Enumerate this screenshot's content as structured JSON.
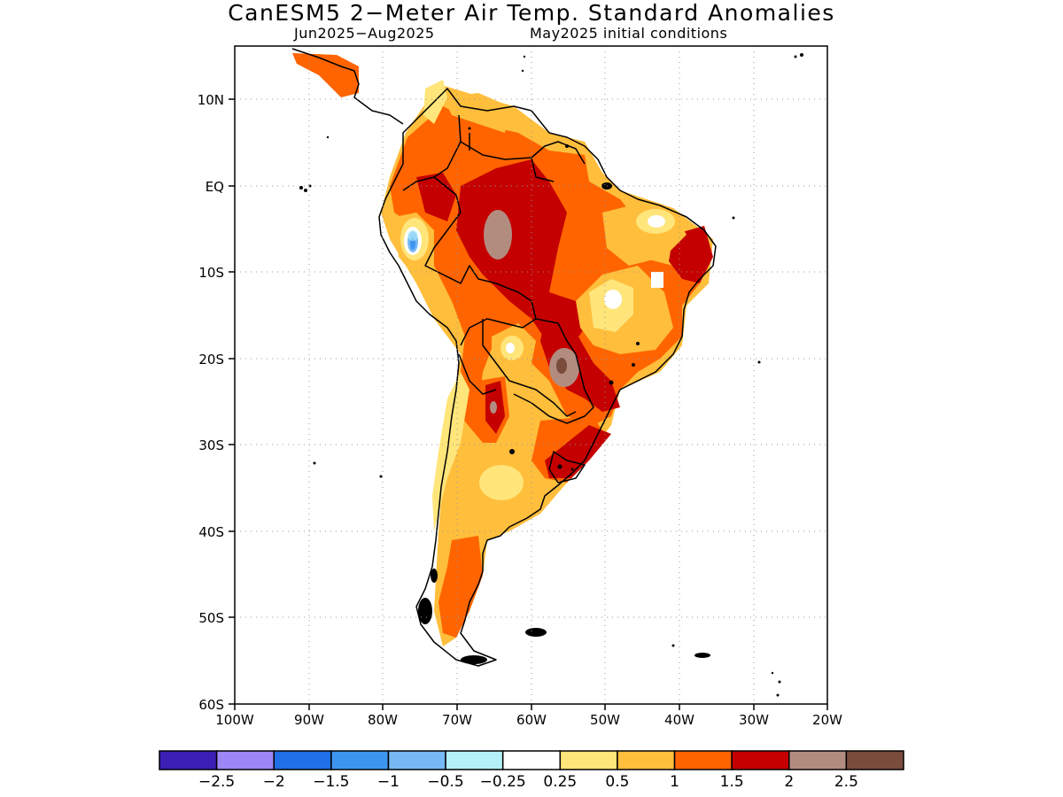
{
  "title": "CanESM5 2−Meter Air Temp. Standard Anomalies",
  "subtitle_period": "Jun2025−Aug2025",
  "subtitle_ic": "May2025 initial conditions",
  "map": {
    "lon_range": [
      -100,
      -20
    ],
    "lat_range": [
      -60,
      15
    ],
    "lat_ticks": [
      "10N",
      "EQ",
      "10S",
      "20S",
      "30S",
      "40S",
      "50S",
      "60S"
    ],
    "lon_ticks": [
      "100W",
      "90W",
      "80W",
      "70W",
      "60W",
      "50W",
      "40W",
      "30W",
      "20W"
    ],
    "grid": "dotted"
  },
  "colorbar": {
    "colors": [
      "#3a1fb5",
      "#9b87f5",
      "#1f6fe6",
      "#3c96f0",
      "#78b8f5",
      "#b3f0f8",
      "#ffffff",
      "#ffe57a",
      "#ffbe3c",
      "#ff6400",
      "#c40000",
      "#b38c80",
      "#7a4c3c"
    ],
    "labels": [
      "−2.5",
      "−2",
      "−1.5",
      "−1",
      "−0.5",
      "−0.25",
      "0.25",
      "0.5",
      "1",
      "1.5",
      "2",
      "2.5"
    ]
  }
}
